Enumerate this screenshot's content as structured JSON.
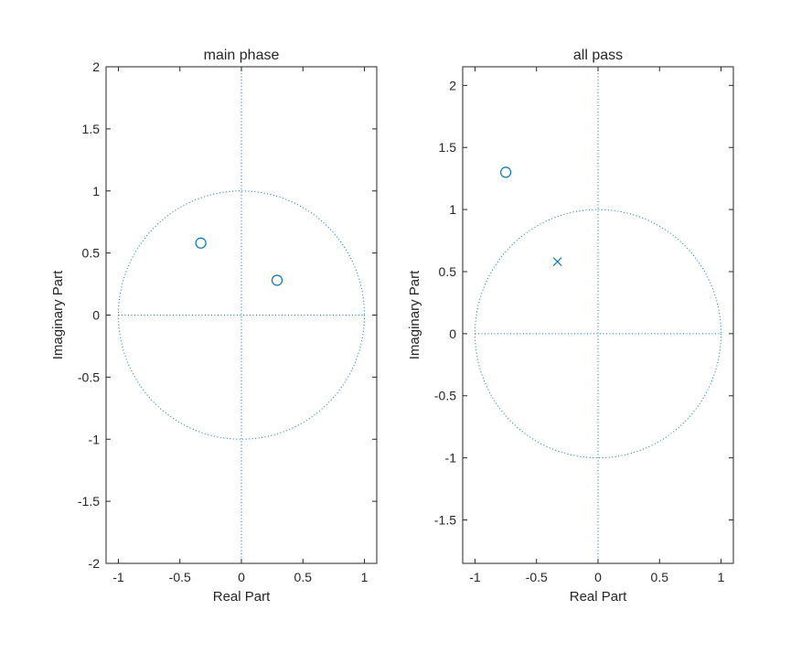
{
  "chart_data": [
    {
      "type": "scatter",
      "title": "main phase",
      "xlabel": "Real Part",
      "ylabel": "Imaginary Part",
      "xlim": [
        -1.1,
        1.1
      ],
      "ylim": [
        -2.0,
        2.0
      ],
      "xticks": [
        -1,
        -0.5,
        0,
        0.5,
        1
      ],
      "xtick_labels": [
        "-1",
        "-0.5",
        "0",
        "0.5",
        "1"
      ],
      "yticks": [
        -2,
        -1.5,
        -1,
        -0.5,
        0,
        0.5,
        1,
        1.5,
        2
      ],
      "ytick_labels": [
        "-2",
        "-1.5",
        "-1",
        "-0.5",
        "0",
        "0.5",
        "1",
        "1.5",
        "2"
      ],
      "unit_circle": true,
      "series": [
        {
          "kind": "zeros",
          "marker": "o",
          "points": [
            [
              -0.33,
              0.58
            ],
            [
              0.29,
              0.28
            ]
          ]
        },
        {
          "kind": "poles",
          "marker": "x",
          "points": []
        }
      ]
    },
    {
      "type": "scatter",
      "title": "all pass",
      "xlabel": "Real Part",
      "ylabel": "Imaginary Part",
      "xlim": [
        -1.1,
        1.1
      ],
      "ylim": [
        -1.85,
        2.15
      ],
      "xticks": [
        -1,
        -0.5,
        0,
        0.5,
        1
      ],
      "xtick_labels": [
        "-1",
        "-0.5",
        "0",
        "0.5",
        "1"
      ],
      "yticks": [
        -1.5,
        -1,
        -0.5,
        0,
        0.5,
        1,
        1.5,
        2
      ],
      "ytick_labels": [
        "-1.5",
        "-1",
        "-0.5",
        "0",
        "0.5",
        "1",
        "1.5",
        "2"
      ],
      "unit_circle": true,
      "series": [
        {
          "kind": "zeros",
          "marker": "o",
          "points": [
            [
              -0.75,
              1.3
            ]
          ]
        },
        {
          "kind": "poles",
          "marker": "x",
          "points": [
            [
              -0.33,
              0.58
            ]
          ]
        }
      ]
    }
  ],
  "colors": {
    "marker": "#0072bd",
    "axes": "#262626",
    "background": "#ffffff"
  }
}
